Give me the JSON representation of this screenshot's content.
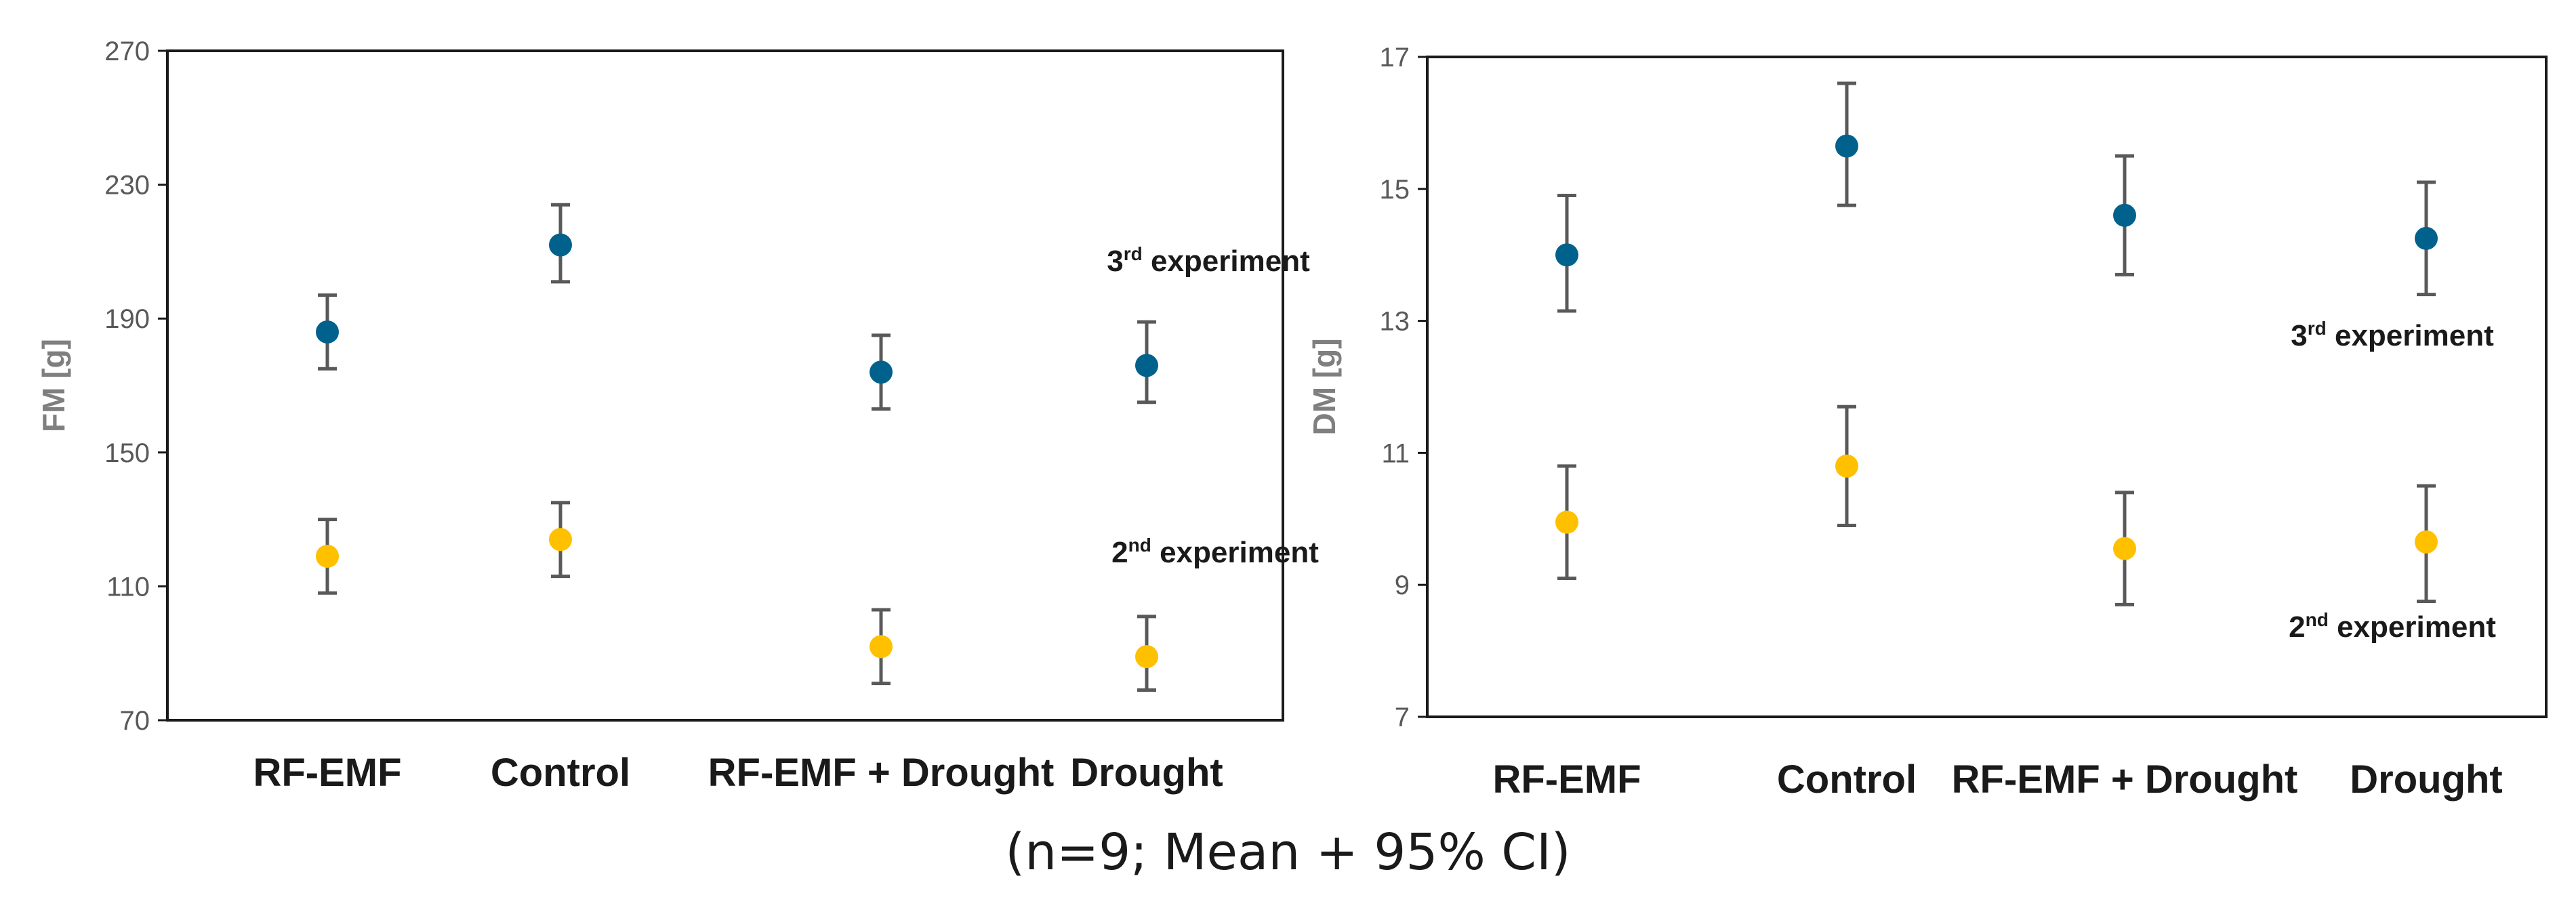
{
  "footnote": "(n=9; Mean + 95% CI)",
  "colors": {
    "third": "#00618C",
    "second": "#FFC000",
    "error_bar": "#595959",
    "frame": "#1a1a1a",
    "tick_text": "#595959",
    "axis_title": "#7f7f7f",
    "category_text": "#1a1a1a"
  },
  "chart_data": [
    {
      "type": "scatter",
      "categories": [
        "RF-EMF",
        "Control",
        "RF-EMF + Drought",
        "Drought"
      ],
      "ylabel": "FM [g]",
      "ylim": [
        70,
        270
      ],
      "yticks": [
        70,
        110,
        150,
        190,
        230,
        270
      ],
      "series": [
        {
          "name": "3rd experiment",
          "name_base": "3",
          "name_sup": "rd",
          "name_rest": " experiment",
          "values": [
            186,
            212,
            174,
            176
          ],
          "ci_low": [
            175,
            201,
            163,
            165
          ],
          "ci_high": [
            197,
            224,
            185,
            189
          ]
        },
        {
          "name": "2nd experiment",
          "name_base": "2",
          "name_sup": "nd",
          "name_rest": " experiment",
          "values": [
            119,
            124,
            92,
            89
          ],
          "ci_low": [
            108,
            113,
            81,
            79
          ],
          "ci_high": [
            130,
            135,
            103,
            101
          ]
        }
      ]
    },
    {
      "type": "scatter",
      "categories": [
        "RF-EMF",
        "Control",
        "RF-EMF + Drought",
        "Drought"
      ],
      "ylabel": "DM [g]",
      "ylim": [
        7,
        17
      ],
      "yticks": [
        7,
        9,
        11,
        13,
        15,
        17
      ],
      "series": [
        {
          "name": "3rd experiment",
          "name_base": "3",
          "name_sup": "rd",
          "name_rest": " experiment",
          "values": [
            14.0,
            15.65,
            14.6,
            14.25
          ],
          "ci_low": [
            13.15,
            14.75,
            13.7,
            13.4
          ],
          "ci_high": [
            14.9,
            16.6,
            15.5,
            15.1
          ]
        },
        {
          "name": "2nd experiment",
          "name_base": "2",
          "name_sup": "nd",
          "name_rest": " experiment",
          "values": [
            9.95,
            10.8,
            9.55,
            9.65
          ],
          "ci_low": [
            9.1,
            9.9,
            8.7,
            8.75
          ],
          "ci_high": [
            10.8,
            11.7,
            10.4,
            10.5
          ]
        }
      ]
    }
  ]
}
